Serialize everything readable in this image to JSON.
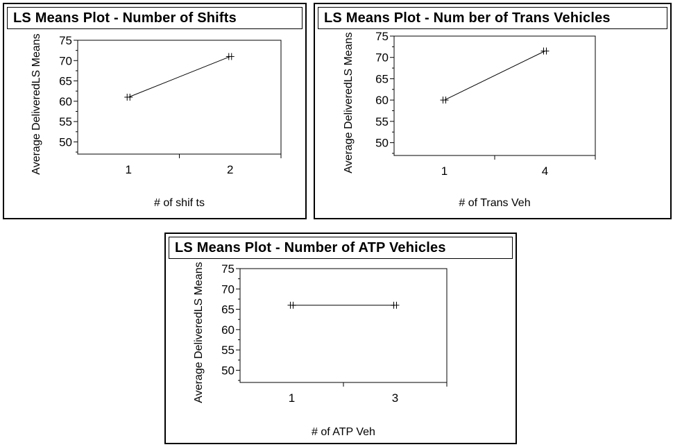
{
  "chart_data": [
    {
      "type": "line",
      "title": "LS Means Plot - Number of Shifts",
      "xlabel": "# of  shif ts",
      "ylabel": "Average DeliveredLS Means",
      "categories": [
        "1",
        "2"
      ],
      "values": [
        61,
        71
      ],
      "yticks": [
        "75",
        "70",
        "65",
        "60",
        "55",
        "50"
      ],
      "ylim": [
        47,
        75
      ],
      "grid": false
    },
    {
      "type": "line",
      "title": "LS Means Plot - Num ber of Trans Vehicles",
      "xlabel": "# of  Trans Veh",
      "ylabel": "Average DeliveredLS Means",
      "categories": [
        "1",
        "4"
      ],
      "values": [
        60,
        71.5
      ],
      "yticks": [
        "75",
        "70",
        "65",
        "60",
        "55",
        "50"
      ],
      "ylim": [
        47,
        75
      ],
      "grid": false
    },
    {
      "type": "line",
      "title": "LS Means Plot - Number of ATP Vehicles",
      "xlabel": "# of  ATP Veh",
      "ylabel": "Average DeliveredLS Means",
      "categories": [
        "1",
        "3"
      ],
      "values": [
        66,
        66
      ],
      "yticks": [
        "75",
        "70",
        "65",
        "60",
        "55",
        "50"
      ],
      "ylim": [
        47,
        75
      ],
      "grid": false
    }
  ]
}
